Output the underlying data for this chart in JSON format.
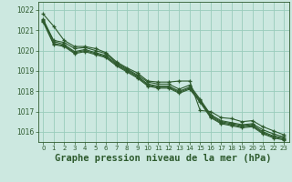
{
  "background_color": "#cce8e0",
  "grid_color": "#99ccbb",
  "line_color": "#2d5a2d",
  "xlabel": "Graphe pression niveau de la mer (hPa)",
  "xlabel_fontsize": 7.5,
  "xlim": [
    -0.5,
    23.5
  ],
  "ylim": [
    1015.5,
    1022.4
  ],
  "yticks": [
    1016,
    1017,
    1018,
    1019,
    1020,
    1021,
    1022
  ],
  "xticks": [
    0,
    1,
    2,
    3,
    4,
    5,
    6,
    7,
    8,
    9,
    10,
    11,
    12,
    13,
    14,
    15,
    16,
    17,
    18,
    19,
    20,
    21,
    22,
    23
  ],
  "series": [
    [
      1021.8,
      1021.2,
      1020.5,
      1020.2,
      1020.2,
      1020.1,
      1019.9,
      1019.45,
      1019.15,
      1018.9,
      1018.5,
      1018.45,
      1018.45,
      1018.5,
      1018.5,
      1017.05,
      1017.0,
      1016.7,
      1016.65,
      1016.5,
      1016.55,
      1016.25,
      1016.05,
      1015.85
    ],
    [
      1021.5,
      1020.5,
      1020.4,
      1020.1,
      1020.15,
      1020.0,
      1019.85,
      1019.4,
      1019.1,
      1018.8,
      1018.45,
      1018.35,
      1018.35,
      1018.1,
      1018.3,
      1017.6,
      1016.85,
      1016.55,
      1016.45,
      1016.35,
      1016.4,
      1016.1,
      1015.9,
      1015.75
    ],
    [
      1021.55,
      1020.45,
      1020.3,
      1019.95,
      1020.05,
      1019.9,
      1019.75,
      1019.35,
      1019.05,
      1018.75,
      1018.35,
      1018.25,
      1018.25,
      1018.0,
      1018.2,
      1017.55,
      1016.8,
      1016.5,
      1016.4,
      1016.3,
      1016.35,
      1016.0,
      1015.8,
      1015.7
    ],
    [
      1021.45,
      1020.35,
      1020.25,
      1019.9,
      1020.0,
      1019.85,
      1019.7,
      1019.3,
      1019.0,
      1018.7,
      1018.3,
      1018.2,
      1018.2,
      1017.95,
      1018.15,
      1017.5,
      1016.75,
      1016.45,
      1016.35,
      1016.25,
      1016.3,
      1015.95,
      1015.75,
      1015.65
    ],
    [
      1021.4,
      1020.3,
      1020.2,
      1019.85,
      1019.95,
      1019.8,
      1019.65,
      1019.25,
      1018.95,
      1018.65,
      1018.25,
      1018.15,
      1018.15,
      1017.9,
      1018.1,
      1017.45,
      1016.7,
      1016.4,
      1016.3,
      1016.2,
      1016.25,
      1015.9,
      1015.7,
      1015.6
    ]
  ]
}
